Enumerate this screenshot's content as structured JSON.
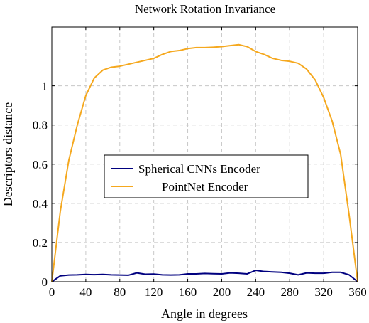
{
  "chart_data": {
    "type": "line",
    "title": "Network Rotation Invariance",
    "xlabel": "Angle in degrees",
    "ylabel": "Descriptors distance",
    "xlim": [
      0,
      360
    ],
    "ylim": [
      0,
      1.3
    ],
    "xticks": [
      0,
      40,
      80,
      120,
      160,
      200,
      240,
      280,
      320,
      360
    ],
    "yticks": [
      0,
      0.2,
      0.4,
      0.6,
      0.8,
      1
    ],
    "ytick_labels": [
      "0",
      "0.2",
      "0.4",
      "0.6",
      "0.8",
      "1"
    ],
    "grid": true,
    "legend_position": "center-left",
    "series": [
      {
        "name": "Spherical CNNs Encoder",
        "color": "#00007f",
        "x": [
          0,
          10,
          20,
          30,
          40,
          50,
          60,
          70,
          80,
          90,
          100,
          110,
          120,
          130,
          140,
          150,
          160,
          170,
          180,
          190,
          200,
          210,
          220,
          230,
          240,
          250,
          260,
          270,
          280,
          290,
          300,
          310,
          320,
          330,
          340,
          350,
          360
        ],
        "y": [
          0,
          0.03,
          0.034,
          0.035,
          0.037,
          0.036,
          0.037,
          0.035,
          0.034,
          0.033,
          0.045,
          0.038,
          0.039,
          0.035,
          0.034,
          0.035,
          0.04,
          0.04,
          0.042,
          0.041,
          0.04,
          0.045,
          0.043,
          0.04,
          0.058,
          0.052,
          0.05,
          0.048,
          0.043,
          0.035,
          0.045,
          0.043,
          0.043,
          0.048,
          0.048,
          0.035,
          0
        ]
      },
      {
        "name": "PointNet Encoder",
        "color": "#f5a81e",
        "x": [
          0,
          10,
          20,
          30,
          40,
          50,
          60,
          70,
          80,
          90,
          100,
          110,
          120,
          130,
          140,
          150,
          160,
          170,
          180,
          190,
          200,
          210,
          220,
          230,
          240,
          250,
          260,
          270,
          280,
          290,
          300,
          310,
          320,
          330,
          340,
          350,
          360
        ],
        "y": [
          0,
          0.36,
          0.62,
          0.8,
          0.95,
          1.04,
          1.08,
          1.095,
          1.1,
          1.11,
          1.12,
          1.13,
          1.14,
          1.16,
          1.175,
          1.18,
          1.19,
          1.195,
          1.195,
          1.197,
          1.2,
          1.205,
          1.21,
          1.2,
          1.175,
          1.16,
          1.14,
          1.13,
          1.125,
          1.115,
          1.085,
          1.03,
          0.94,
          0.82,
          0.65,
          0.34,
          0
        ]
      }
    ]
  }
}
